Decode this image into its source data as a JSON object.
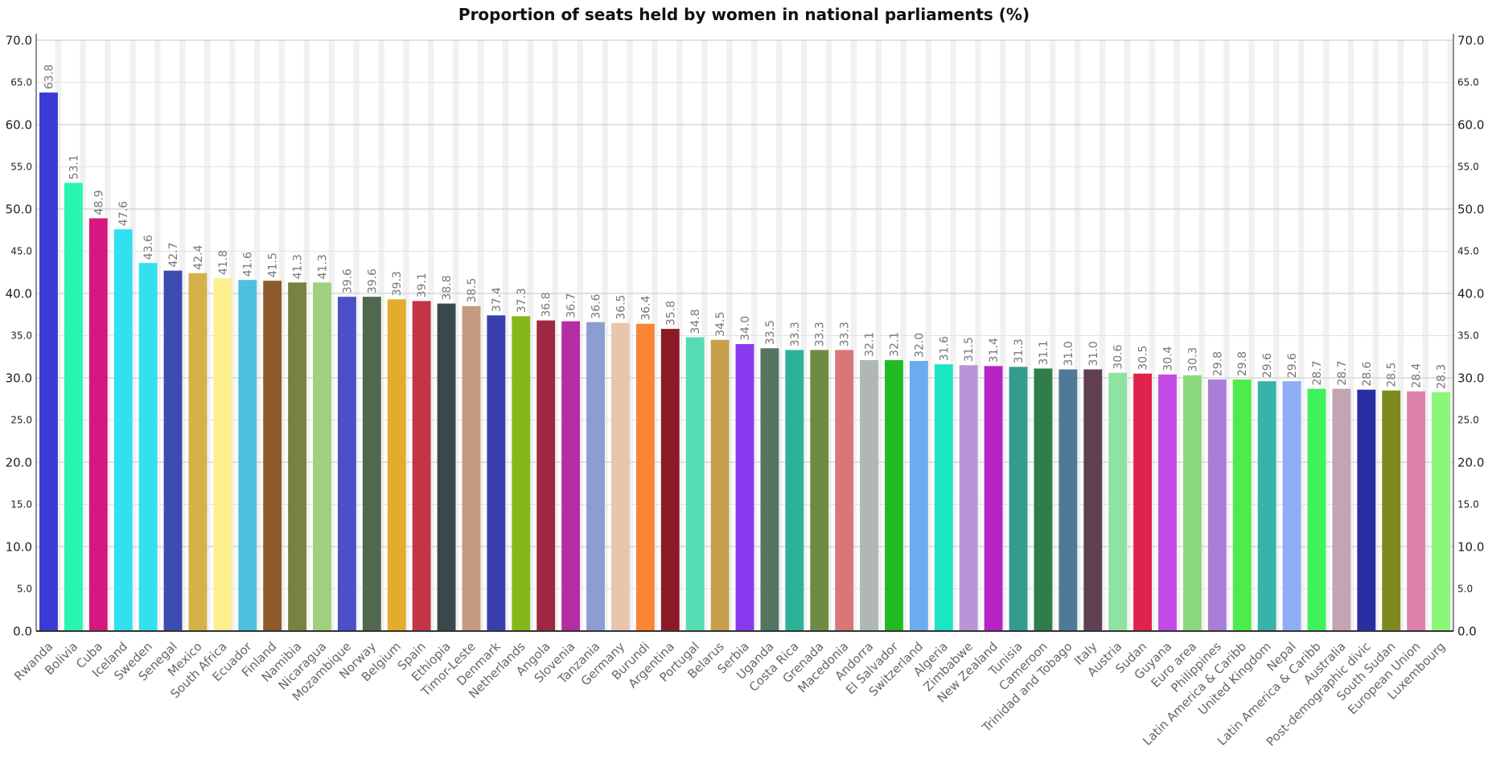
{
  "chart_data": {
    "type": "bar",
    "title": "Proportion of seats held by women in national parliaments (%)",
    "xlabel": "",
    "ylabel": "",
    "ylim": [
      0,
      70
    ],
    "yticks": [
      "0.0",
      "5.0",
      "10.0",
      "15.0",
      "20.0",
      "25.0",
      "30.0",
      "35.0",
      "40.0",
      "45.0",
      "50.0",
      "55.0",
      "60.0",
      "65.0",
      "70.0"
    ],
    "grid": true,
    "legend": "none",
    "categories": [
      "Rwanda",
      "Bolivia",
      "Cuba",
      "Iceland",
      "Sweden",
      "Senegal",
      "Mexico",
      "South Africa",
      "Ecuador",
      "Finland",
      "Namibia",
      "Nicaragua",
      "Mozambique",
      "Norway",
      "Belgium",
      "Spain",
      "Ethiopia",
      "Timor-Leste",
      "Denmark",
      "Netherlands",
      "Angola",
      "Slovenia",
      "Tanzania",
      "Germany",
      "Burundi",
      "Argentina",
      "Portugal",
      "Belarus",
      "Serbia",
      "Uganda",
      "Costa Rica",
      "Grenada",
      "Macedonia",
      "Andorra",
      "El Salvador",
      "Switzerland",
      "Algeria",
      "Zimbabwe",
      "New Zealand",
      "Tunisia",
      "Cameroon",
      "Trinidad and Tobago",
      "Italy",
      "Austria",
      "Sudan",
      "Guyana",
      "Euro area",
      "Philippines",
      "Latin America & Caribb",
      "United Kingdom",
      "Nepal",
      "Latin America & Caribb",
      "Australia",
      "Post-demographic divic",
      "South Sudan",
      "European Union",
      "Luxembourg"
    ],
    "values": [
      63.8,
      53.1,
      48.9,
      47.6,
      43.6,
      42.7,
      42.4,
      41.8,
      41.6,
      41.5,
      41.3,
      41.3,
      39.6,
      39.6,
      39.3,
      39.1,
      38.8,
      38.5,
      37.4,
      37.3,
      36.8,
      36.7,
      36.6,
      36.5,
      36.4,
      35.8,
      34.8,
      34.5,
      34.0,
      33.5,
      33.3,
      33.3,
      33.3,
      32.1,
      32.1,
      32.0,
      31.6,
      31.5,
      31.4,
      31.3,
      31.1,
      31.0,
      31.0,
      30.6,
      30.5,
      30.4,
      30.3,
      29.8,
      29.8,
      29.6,
      29.6,
      28.7,
      28.7,
      28.6,
      28.5,
      28.4,
      28.3
    ],
    "value_labels": [
      "63.8",
      "53.1",
      "48.9",
      "47.6",
      "43.6",
      "42.7",
      "42.4",
      "41.8",
      "41.6",
      "41.5",
      "41.3",
      "41.3",
      "39.6",
      "39.6",
      "39.3",
      "39.1",
      "38.8",
      "38.5",
      "37.4",
      "37.3",
      "36.8",
      "36.7",
      "36.6",
      "36.5",
      "36.4",
      "35.8",
      "34.8",
      "34.5",
      "34.0",
      "33.5",
      "33.3",
      "33.3",
      "33.3",
      "32.1",
      "32.1",
      "32.0",
      "31.6",
      "31.5",
      "31.4",
      "31.3",
      "31.1",
      "31.0",
      "31.0",
      "30.6",
      "30.5",
      "30.4",
      "30.3",
      "29.8",
      "29.8",
      "29.6",
      "29.6",
      "28.7",
      "28.7",
      "28.6",
      "28.5",
      "28.4",
      "28.3"
    ],
    "colors": [
      "#3a3ad4",
      "#29f5b3",
      "#d6177f",
      "#33e0ee",
      "#33e0ee",
      "#3c4cb0",
      "#d6b048",
      "#fdef8e",
      "#4fc0dd",
      "#8f5a2b",
      "#798242",
      "#9fd07f",
      "#4b4fc8",
      "#4f684e",
      "#e2ac2c",
      "#c33546",
      "#39484a",
      "#c49a83",
      "#3a3fad",
      "#84b719",
      "#9e2743",
      "#b42ea3",
      "#8c9dd2",
      "#e9c5ae",
      "#f98535",
      "#8c1a26",
      "#56dcb5",
      "#c8a04b",
      "#8a3aee",
      "#557562",
      "#2bb39a",
      "#6e8a43",
      "#d87777",
      "#afb8b6",
      "#22ba22",
      "#6aacee",
      "#1ce5c5",
      "#b994d6",
      "#b824c4",
      "#349c8e",
      "#2f7d4a",
      "#4e7a97",
      "#5f3f51",
      "#8ee3a2",
      "#e0224d",
      "#c14be4",
      "#8ad97c",
      "#a87ed7",
      "#4cec4c",
      "#38b3a8",
      "#8fadf7",
      "#3ff25a",
      "#c3a4b2",
      "#2a2ea3",
      "#7d8b1d",
      "#dc82ac",
      "#8bf779"
    ]
  }
}
